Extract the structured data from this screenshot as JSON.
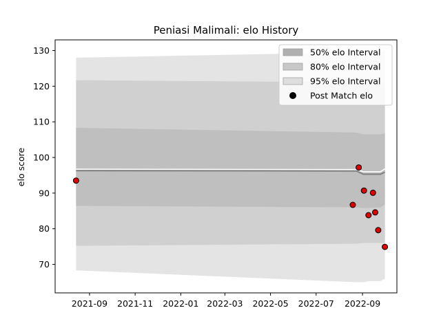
{
  "chart_data": {
    "type": "area",
    "title": "Peniasi Malimali: elo History",
    "xlabel": "",
    "ylabel": "elo score",
    "xlim": [
      "2021-07-17",
      "2022-10-17"
    ],
    "ylim": [
      62,
      133
    ],
    "x_ticks": [
      "2021-09-01",
      "2021-11-01",
      "2022-01-01",
      "2022-03-01",
      "2022-05-01",
      "2022-07-01",
      "2022-09-01"
    ],
    "x_tick_labels": [
      "2021-09",
      "2021-11",
      "2022-01",
      "2022-03",
      "2022-05",
      "2022-07",
      "2022-09"
    ],
    "y_ticks": [
      70,
      80,
      90,
      100,
      110,
      120,
      130
    ],
    "band_x": [
      "2021-08-14",
      "2022-08-24",
      "2022-09-02",
      "2022-09-10",
      "2022-09-25",
      "2022-10-01"
    ],
    "mean": [
      96.3,
      96.2,
      95.3,
      95.3,
      95.3,
      95.9
    ],
    "median": [
      96.7,
      96.6,
      96.0,
      96.0,
      96.0,
      96.8
    ],
    "bands": [
      {
        "name": "95% elo Interval",
        "color": "#e4e4e4",
        "lower": [
          68.3,
          65.0,
          65.0,
          65.3,
          65.3,
          66.0
        ],
        "upper": [
          128.0,
          129.5,
          129.7,
          129.8,
          129.8,
          130.5
        ]
      },
      {
        "name": "80% elo Interval",
        "color": "#d0d0d0",
        "lower": [
          75.2,
          75.8,
          76.0,
          76.0,
          76.0,
          76.0
        ],
        "upper": [
          121.7,
          121.1,
          120.9,
          120.9,
          120.8,
          121.0
        ]
      },
      {
        "name": "50% elo Interval",
        "color": "#bfbfbf",
        "lower": [
          86.4,
          86.0,
          85.8,
          85.8,
          86.0,
          86.8
        ],
        "upper": [
          108.3,
          107.0,
          106.5,
          106.5,
          106.5,
          106.8
        ]
      }
    ],
    "points": [
      {
        "x": "2021-08-14",
        "y": 93.5
      },
      {
        "x": "2022-08-19",
        "y": 86.7
      },
      {
        "x": "2022-08-27",
        "y": 97.2
      },
      {
        "x": "2022-09-03",
        "y": 90.7
      },
      {
        "x": "2022-09-09",
        "y": 83.8
      },
      {
        "x": "2022-09-15",
        "y": 90.1
      },
      {
        "x": "2022-09-18",
        "y": 84.6
      },
      {
        "x": "2022-09-22",
        "y": 79.6
      },
      {
        "x": "2022-10-01",
        "y": 74.9
      }
    ],
    "point_color": "#dd0000",
    "legend": {
      "position": "top-right",
      "entries": [
        {
          "label": "50% elo Interval",
          "kind": "patch",
          "color": "#b0b0b0"
        },
        {
          "label": "80% elo Interval",
          "kind": "patch",
          "color": "#c8c8c8"
        },
        {
          "label": "95% elo Interval",
          "kind": "patch",
          "color": "#dedede"
        },
        {
          "label": "Post Match elo",
          "kind": "marker",
          "color": "#000000"
        }
      ]
    }
  }
}
